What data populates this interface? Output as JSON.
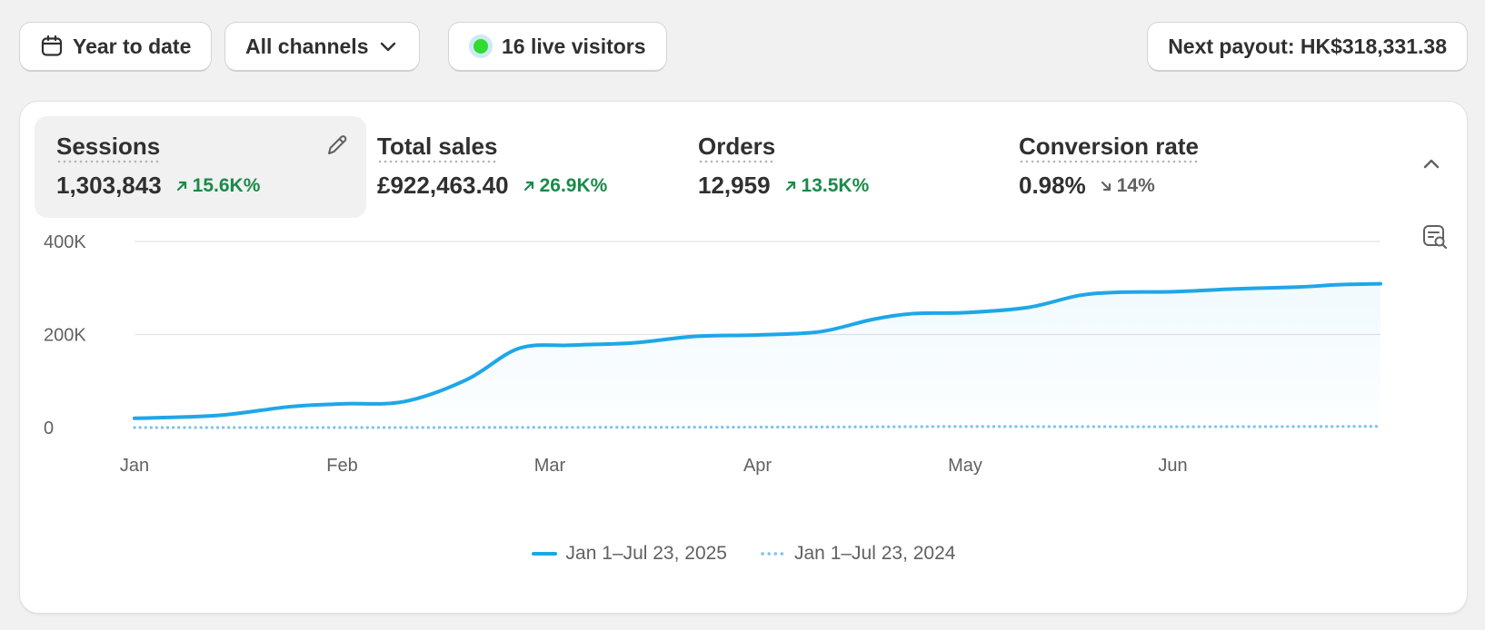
{
  "toolbar": {
    "date_range": "Year to date",
    "channels": "All channels",
    "live_visitors": "16 live visitors",
    "payout": "Next payout: HK$318,331.38",
    "live_color": "#2fdc2f"
  },
  "metrics": [
    {
      "title": "Sessions",
      "value": "1,303,843",
      "delta": "15.6K%",
      "direction": "up"
    },
    {
      "title": "Total sales",
      "value": "£922,463.40",
      "delta": "26.9K%",
      "direction": "up"
    },
    {
      "title": "Orders",
      "value": "12,959",
      "delta": "13.5K%",
      "direction": "up"
    },
    {
      "title": "Conversion rate",
      "value": "0.98%",
      "delta": "14%",
      "direction": "down"
    }
  ],
  "chart_data": {
    "type": "line",
    "title": "Sessions",
    "ylim": [
      0,
      400000
    ],
    "y_ticks": [
      0,
      200000,
      400000
    ],
    "y_tick_labels": [
      "0",
      "200K",
      "400K"
    ],
    "x_tick_labels": [
      "Jan",
      "Feb",
      "Mar",
      "Apr",
      "May",
      "Jun"
    ],
    "x_range_months": [
      0,
      6.0
    ],
    "series": [
      {
        "name": "Jan 1–Jul 23, 2025",
        "style": "solid",
        "color": "#1ea7e8",
        "x": [
          0,
          0.4,
          0.75,
          1.0,
          1.3,
          1.6,
          1.85,
          2.1,
          2.4,
          2.7,
          3.0,
          3.3,
          3.55,
          3.75,
          4.0,
          4.3,
          4.55,
          4.75,
          5.0,
          5.3,
          5.6,
          5.8,
          6.0
        ],
        "values": [
          20000,
          26000,
          45000,
          51000,
          56000,
          103000,
          170000,
          177000,
          182000,
          196000,
          199000,
          206000,
          232000,
          245000,
          247000,
          258000,
          284000,
          291000,
          292000,
          298000,
          302000,
          307000,
          309000
        ]
      },
      {
        "name": "Jan 1–Jul 23, 2024",
        "style": "dotted",
        "color": "#7fc3ea",
        "x": [
          0,
          1.0,
          2.0,
          3.0,
          3.5,
          4.0,
          5.0,
          6.0
        ],
        "values": [
          0,
          0,
          300,
          900,
          1500,
          2200,
          1800,
          2500
        ]
      }
    ]
  }
}
